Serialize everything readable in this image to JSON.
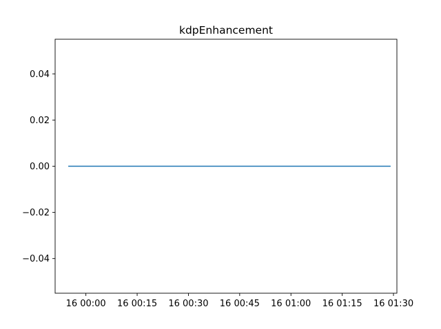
{
  "chart_data": {
    "type": "line",
    "title": "kdpEnhancement",
    "xlabel": "",
    "ylabel": "",
    "x_axis_type": "time",
    "xlim": [
      "23:51",
      "01:31"
    ],
    "ylim": [
      -0.055,
      0.055
    ],
    "x_ticks": [
      "16 00:00",
      "16 00:15",
      "16 00:30",
      "16 00:45",
      "16 01:00",
      "16 01:15",
      "16 01:30"
    ],
    "x_tick_values": [
      "00:00",
      "00:15",
      "00:30",
      "00:45",
      "01:00",
      "01:15",
      "01:30"
    ],
    "y_ticks": [
      "0.04",
      "0.02",
      "0.00",
      "−0.02",
      "−0.04"
    ],
    "y_tick_values": [
      0.04,
      0.02,
      0.0,
      -0.02,
      -0.04
    ],
    "grid": false,
    "legend": "none",
    "series": [
      {
        "x": [
          "23:55",
          "01:29"
        ],
        "y": [
          0,
          0
        ],
        "color": "#1f77b4"
      }
    ]
  }
}
